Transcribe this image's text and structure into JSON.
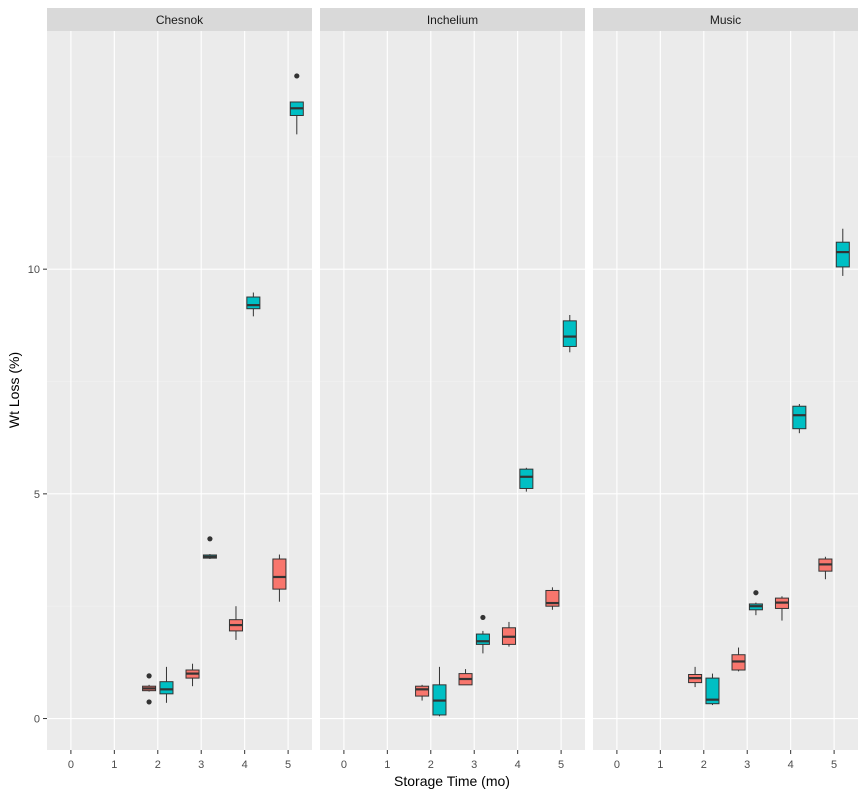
{
  "chart_data": {
    "type": "boxplot",
    "facets": [
      "Chesnok",
      "Inchelium",
      "Music"
    ],
    "xlabel": "Storage Time (mo)",
    "ylabel": "Wt Loss (%)",
    "x_ticks": [
      0,
      1,
      2,
      3,
      4,
      5
    ],
    "y_ticks": [
      0,
      5,
      10
    ],
    "xlim": [
      -0.55,
      5.55
    ],
    "ylim": [
      -0.7,
      15.3
    ],
    "grid": true,
    "legend": "none",
    "colors": {
      "group_a": "#F8766D",
      "group_b": "#00BFC4",
      "panel_bg": "#EBEBEB",
      "strip_bg": "#D9D9D9",
      "grid_major": "#FFFFFF",
      "grid_minor": "#F2F2F2",
      "box_line": "#333333"
    },
    "boxes": [
      {
        "facet": "Chesnok",
        "x": 1.8,
        "group": "a",
        "min": 0.6,
        "q1": 0.62,
        "median": 0.67,
        "q3": 0.72,
        "max": 0.75,
        "outliers": [
          0.95,
          0.37
        ]
      },
      {
        "facet": "Chesnok",
        "x": 2.2,
        "group": "b",
        "min": 0.35,
        "q1": 0.55,
        "median": 0.65,
        "q3": 0.82,
        "max": 1.15,
        "outliers": []
      },
      {
        "facet": "Chesnok",
        "x": 2.8,
        "group": "a",
        "min": 0.72,
        "q1": 0.9,
        "median": 1.0,
        "q3": 1.08,
        "max": 1.22,
        "outliers": []
      },
      {
        "facet": "Chesnok",
        "x": 3.2,
        "group": "b",
        "min": 3.55,
        "q1": 3.57,
        "median": 3.6,
        "q3": 3.64,
        "max": 3.66,
        "outliers": [
          4.0
        ]
      },
      {
        "facet": "Chesnok",
        "x": 3.8,
        "group": "a",
        "min": 1.75,
        "q1": 1.95,
        "median": 2.08,
        "q3": 2.2,
        "max": 2.5,
        "outliers": []
      },
      {
        "facet": "Chesnok",
        "x": 4.2,
        "group": "b",
        "min": 8.95,
        "q1": 9.12,
        "median": 9.2,
        "q3": 9.38,
        "max": 9.48,
        "outliers": []
      },
      {
        "facet": "Chesnok",
        "x": 4.8,
        "group": "a",
        "min": 2.6,
        "q1": 2.88,
        "median": 3.15,
        "q3": 3.55,
        "max": 3.65,
        "outliers": []
      },
      {
        "facet": "Chesnok",
        "x": 5.2,
        "group": "b",
        "min": 13.0,
        "q1": 13.42,
        "median": 13.58,
        "q3": 13.72,
        "max": 13.72,
        "outliers": [
          14.3
        ]
      },
      {
        "facet": "Inchelium",
        "x": 1.8,
        "group": "a",
        "min": 0.4,
        "q1": 0.5,
        "median": 0.65,
        "q3": 0.72,
        "max": 0.75,
        "outliers": []
      },
      {
        "facet": "Inchelium",
        "x": 2.2,
        "group": "b",
        "min": 0.05,
        "q1": 0.08,
        "median": 0.4,
        "q3": 0.75,
        "max": 1.15,
        "outliers": []
      },
      {
        "facet": "Inchelium",
        "x": 2.8,
        "group": "a",
        "min": 0.75,
        "q1": 0.75,
        "median": 0.88,
        "q3": 1.0,
        "max": 1.1,
        "outliers": []
      },
      {
        "facet": "Inchelium",
        "x": 3.2,
        "group": "b",
        "min": 1.45,
        "q1": 1.65,
        "median": 1.72,
        "q3": 1.88,
        "max": 1.95,
        "outliers": [
          2.25
        ]
      },
      {
        "facet": "Inchelium",
        "x": 3.8,
        "group": "a",
        "min": 1.6,
        "q1": 1.65,
        "median": 1.82,
        "q3": 2.02,
        "max": 2.15,
        "outliers": []
      },
      {
        "facet": "Inchelium",
        "x": 4.2,
        "group": "b",
        "min": 5.05,
        "q1": 5.12,
        "median": 5.38,
        "q3": 5.55,
        "max": 5.58,
        "outliers": []
      },
      {
        "facet": "Inchelium",
        "x": 4.8,
        "group": "a",
        "min": 2.42,
        "q1": 2.5,
        "median": 2.57,
        "q3": 2.85,
        "max": 2.92,
        "outliers": []
      },
      {
        "facet": "Inchelium",
        "x": 5.2,
        "group": "b",
        "min": 8.15,
        "q1": 8.28,
        "median": 8.5,
        "q3": 8.85,
        "max": 8.98,
        "outliers": []
      },
      {
        "facet": "Music",
        "x": 1.8,
        "group": "a",
        "min": 0.7,
        "q1": 0.8,
        "median": 0.9,
        "q3": 0.98,
        "max": 1.15,
        "outliers": []
      },
      {
        "facet": "Music",
        "x": 2.2,
        "group": "b",
        "min": 0.3,
        "q1": 0.33,
        "median": 0.42,
        "q3": 0.9,
        "max": 1.0,
        "outliers": []
      },
      {
        "facet": "Music",
        "x": 2.8,
        "group": "a",
        "min": 1.05,
        "q1": 1.08,
        "median": 1.27,
        "q3": 1.42,
        "max": 1.58,
        "outliers": []
      },
      {
        "facet": "Music",
        "x": 3.2,
        "group": "b",
        "min": 2.3,
        "q1": 2.42,
        "median": 2.5,
        "q3": 2.55,
        "max": 2.58,
        "outliers": [
          2.8
        ]
      },
      {
        "facet": "Music",
        "x": 3.8,
        "group": "a",
        "min": 2.18,
        "q1": 2.45,
        "median": 2.58,
        "q3": 2.68,
        "max": 2.72,
        "outliers": []
      },
      {
        "facet": "Music",
        "x": 4.2,
        "group": "b",
        "min": 6.35,
        "q1": 6.45,
        "median": 6.75,
        "q3": 6.95,
        "max": 7.0,
        "outliers": []
      },
      {
        "facet": "Music",
        "x": 4.8,
        "group": "a",
        "min": 3.1,
        "q1": 3.28,
        "median": 3.43,
        "q3": 3.55,
        "max": 3.6,
        "outliers": []
      },
      {
        "facet": "Music",
        "x": 5.2,
        "group": "b",
        "min": 9.85,
        "q1": 10.05,
        "median": 10.38,
        "q3": 10.6,
        "max": 10.9,
        "outliers": []
      }
    ]
  }
}
